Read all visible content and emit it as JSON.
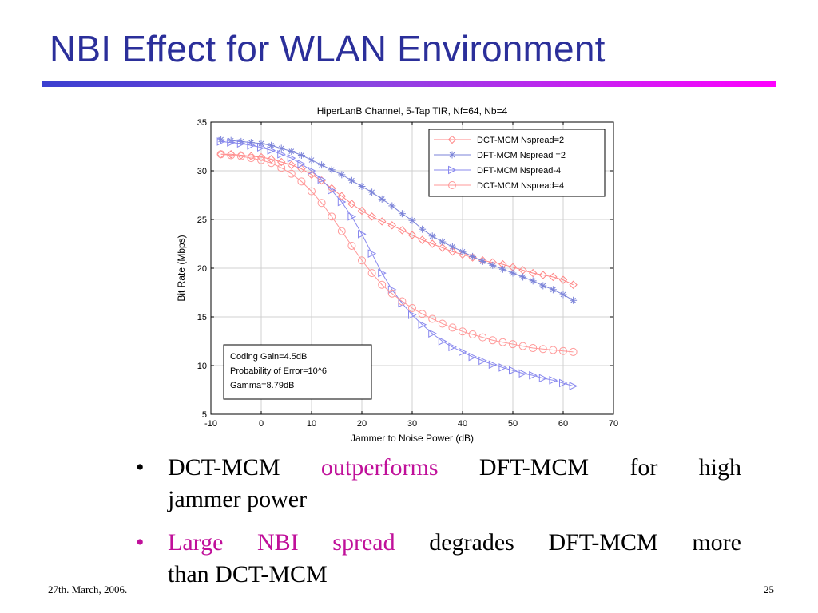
{
  "slide": {
    "title": "NBI Effect for WLAN Environment",
    "footer_date": "27th. March, 2006.",
    "page_number": "25",
    "accent_color": "#c0109a",
    "title_color": "#2b2f9a"
  },
  "bullets": [
    {
      "line1": [
        "DCT-MCM",
        "outperforms",
        "DFT-MCM",
        "for",
        "high"
      ],
      "line1_accent": [
        false,
        true,
        false,
        false,
        false
      ],
      "line2": "jammer power"
    },
    {
      "line1": [
        "Large",
        "NBI",
        "spread",
        "degrades",
        "DFT-MCM",
        "more"
      ],
      "line1_accent": [
        true,
        true,
        true,
        false,
        false,
        false
      ],
      "line2": "than DCT-MCM"
    }
  ],
  "chart_data": {
    "type": "line",
    "title": "HiperLanB Channel, 5-Tap TIR, Nf=64, Nb=4",
    "xlabel": "Jammer to Noise Power (dB)",
    "ylabel": "Bit Rate (Mbps)",
    "xlim": [
      -10,
      70
    ],
    "ylim": [
      5,
      35
    ],
    "xticks": [
      -10,
      0,
      10,
      20,
      30,
      40,
      50,
      60,
      70
    ],
    "yticks": [
      5,
      10,
      15,
      20,
      25,
      30,
      35
    ],
    "grid": true,
    "legend_position": "top-right",
    "x": [
      -8,
      -6,
      -4,
      -2,
      0,
      2,
      4,
      6,
      8,
      10,
      12,
      14,
      16,
      18,
      20,
      22,
      24,
      26,
      28,
      30,
      32,
      34,
      36,
      38,
      40,
      42,
      44,
      46,
      48,
      50,
      52,
      54,
      56,
      58,
      60,
      62
    ],
    "series": [
      {
        "name": "DCT-MCM Nspread=2",
        "color": "#ff8888",
        "marker": "diamond",
        "values": [
          31.7,
          31.7,
          31.6,
          31.5,
          31.4,
          31.2,
          30.9,
          30.6,
          30.2,
          29.6,
          29.0,
          28.2,
          27.4,
          26.6,
          25.9,
          25.3,
          24.8,
          24.4,
          23.9,
          23.4,
          22.9,
          22.5,
          22.1,
          21.7,
          21.4,
          21.1,
          20.8,
          20.6,
          20.4,
          20.1,
          19.8,
          19.5,
          19.3,
          19.1,
          18.8,
          18.3
        ]
      },
      {
        "name": "DFT-MCM Nspread =2",
        "color": "#7b83d8",
        "marker": "star",
        "values": [
          33.2,
          33.1,
          33.0,
          32.9,
          32.8,
          32.6,
          32.3,
          32.0,
          31.6,
          31.1,
          30.6,
          30.1,
          29.6,
          29.0,
          28.4,
          27.8,
          27.1,
          26.4,
          25.6,
          24.9,
          24.0,
          23.3,
          22.7,
          22.2,
          21.7,
          21.2,
          20.7,
          20.3,
          19.9,
          19.5,
          19.1,
          18.7,
          18.2,
          17.8,
          17.3,
          16.7
        ]
      },
      {
        "name": "DFT-MCM Nspread-4",
        "color": "#8888ee",
        "marker": "triangle-right",
        "values": [
          33.0,
          32.9,
          32.8,
          32.6,
          32.4,
          32.1,
          31.7,
          31.3,
          30.7,
          30.0,
          29.1,
          28.0,
          26.8,
          25.3,
          23.5,
          21.5,
          19.5,
          17.8,
          16.4,
          15.2,
          14.2,
          13.3,
          12.5,
          11.9,
          11.4,
          10.9,
          10.5,
          10.1,
          9.8,
          9.5,
          9.2,
          9.0,
          8.7,
          8.5,
          8.2,
          7.9
        ]
      },
      {
        "name": "DCT-MCM Nspread=4",
        "color": "#ff9999",
        "marker": "circle",
        "values": [
          31.7,
          31.6,
          31.5,
          31.3,
          31.1,
          30.8,
          30.3,
          29.7,
          28.9,
          27.9,
          26.7,
          25.3,
          23.8,
          22.3,
          20.8,
          19.5,
          18.3,
          17.4,
          16.6,
          15.9,
          15.3,
          14.8,
          14.3,
          13.9,
          13.5,
          13.2,
          12.9,
          12.6,
          12.4,
          12.2,
          12.0,
          11.8,
          11.7,
          11.6,
          11.5,
          11.4
        ]
      }
    ],
    "annotation_box": [
      "Coding Gain=4.5dB",
      "Probability of Error=10^6",
      "Gamma=8.79dB"
    ]
  }
}
